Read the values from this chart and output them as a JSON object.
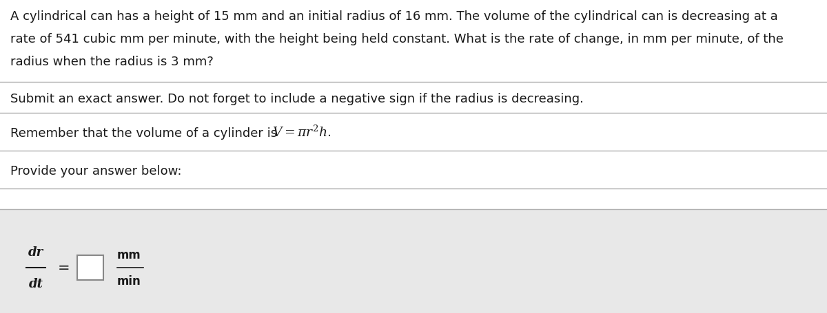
{
  "background_color": "#d8d8d8",
  "section_bg": "#e8e8e8",
  "white_bg": "#ffffff",
  "text_color": "#1a1a1a",
  "divider_color": "#b0b0b0",
  "font_size_main": 13.0,
  "line1": "A cylindrical can has a height of 15 mm and an initial radius of 16 mm. The volume of the cylindrical can is decreasing at a",
  "line2": "rate of 541 cubic mm per minute, with the height being held constant. What is the rate of change, in mm per minute, of the",
  "line3": "radius when the radius is 3 mm?",
  "line4": "Submit an exact answer. Do not forget to include a negative sign if the radius is decreasing.",
  "line5": "Remember that the volume of a cylinder is ",
  "line6": "Provide your answer below:",
  "fig_width": 12.0,
  "fig_height": 4.56
}
